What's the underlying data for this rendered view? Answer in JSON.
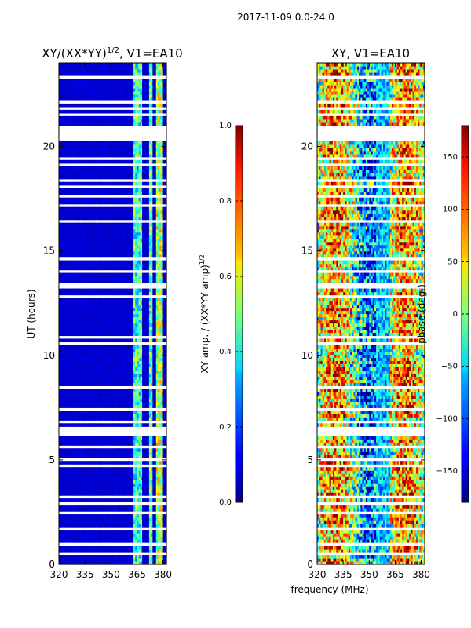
{
  "figure_title": "2017-11-09 0.0-24.0",
  "colors": {
    "frame": "#000000",
    "gap": "#ffffff",
    "background": "#ffffff"
  },
  "chart_data": [
    {
      "type": "heatmap",
      "title": "XY/(XX*YY)",
      "title_exponent": "1/2",
      "title_tail": ", V1=EA10",
      "xlabel": "",
      "ylabel": "UT (hours)",
      "xlim": [
        320,
        382
      ],
      "ylim": [
        0,
        24
      ],
      "xticks": [
        "320",
        "335",
        "350",
        "365",
        "380"
      ],
      "xtick_values": [
        320,
        335,
        350,
        365,
        380
      ],
      "yticks": [
        "0",
        "5",
        "10",
        "15",
        "20"
      ],
      "ytick_values": [
        0,
        5,
        10,
        15,
        20
      ],
      "colormap": "jet",
      "value_description": "normalized XY amplitude, mostly ~0.05 except bright bands near 363-368 MHz and 372-381 MHz (0.3-0.7)",
      "colorbar": {
        "label": "XY amp. / (XX*YY amp)",
        "label_exponent": "1/2",
        "vmin": 0.0,
        "vmax": 1.0,
        "ticks": [
          "0.0",
          "0.2",
          "0.4",
          "0.6",
          "0.8",
          "1.0"
        ],
        "tick_values": [
          0.0,
          0.2,
          0.4,
          0.6,
          0.8,
          1.0
        ]
      }
    },
    {
      "type": "heatmap",
      "title": "XY, V1=EA10",
      "xlabel": "frequency (MHz)",
      "ylabel": "",
      "xlim": [
        320,
        382
      ],
      "ylim": [
        0,
        24
      ],
      "xticks": [
        "320",
        "335",
        "350",
        "365",
        "380"
      ],
      "xtick_values": [
        320,
        335,
        350,
        365,
        380
      ],
      "yticks": [
        "0",
        "5",
        "10",
        "15",
        "20"
      ],
      "ytick_values": [
        0,
        5,
        10,
        15,
        20
      ],
      "colormap": "jet",
      "value_description": "XY phase in degrees, noisy across -180..180 with vertical banding",
      "colorbar": {
        "label": "phase (deg.)",
        "vmin": -180,
        "vmax": 180,
        "ticks": [
          "−150",
          "−100",
          "−50",
          "0",
          "50",
          "100",
          "150"
        ],
        "tick_values": [
          -150,
          -100,
          -50,
          0,
          50,
          100,
          150
        ]
      }
    }
  ],
  "data_gaps_ut_hours": [
    [
      0.45,
      0.55
    ],
    [
      0.9,
      1.0
    ],
    [
      1.3,
      1.38
    ],
    [
      1.7,
      1.78
    ],
    [
      2.05,
      2.12
    ],
    [
      2.45,
      2.55
    ],
    [
      2.85,
      2.95
    ],
    [
      3.2,
      3.3
    ],
    [
      3.55,
      3.65
    ],
    [
      4.3,
      4.38
    ],
    [
      4.7,
      4.8
    ],
    [
      5.0,
      5.1
    ],
    [
      5.6,
      5.75
    ],
    [
      6.2,
      6.55
    ],
    [
      6.8,
      6.9
    ],
    [
      7.35,
      7.45
    ],
    [
      8.45,
      8.6
    ],
    [
      9.55,
      9.65
    ],
    [
      10.05,
      10.12
    ],
    [
      10.5,
      10.6
    ],
    [
      10.8,
      11.0
    ],
    [
      12.75,
      12.95
    ],
    [
      13.15,
      13.45
    ],
    [
      13.95,
      14.05
    ],
    [
      14.55,
      14.65
    ],
    [
      15.1,
      15.2
    ],
    [
      15.55,
      15.65
    ],
    [
      15.85,
      15.95
    ],
    [
      16.3,
      16.5
    ],
    [
      17.15,
      17.25
    ],
    [
      17.6,
      17.7
    ],
    [
      18.0,
      18.1
    ],
    [
      18.3,
      18.45
    ],
    [
      19.05,
      19.15
    ],
    [
      19.35,
      19.5
    ],
    [
      20.3,
      20.95
    ],
    [
      21.45,
      21.55
    ],
    [
      21.75,
      21.85
    ],
    [
      22.05,
      22.15
    ],
    [
      22.45,
      22.55
    ],
    [
      22.9,
      23.0
    ],
    [
      23.25,
      23.35
    ]
  ]
}
